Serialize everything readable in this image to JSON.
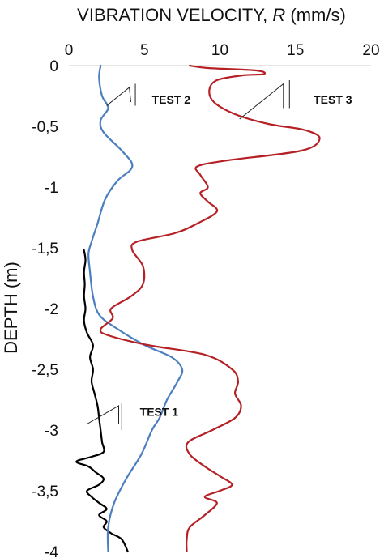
{
  "chart_data": {
    "type": "line",
    "title": "",
    "xlabel_prefix": "VIBRATION VELOCITY, ",
    "xlabel_var": "R",
    "xlabel_unit": " (mm/s)",
    "ylabel": "DEPTH (m)",
    "xlim": [
      0,
      20
    ],
    "ylim": [
      -4,
      0
    ],
    "x_ticks": [
      0,
      5,
      10,
      15,
      20
    ],
    "x_tick_labels": [
      "0",
      "5",
      "10",
      "15",
      "20"
    ],
    "y_ticks": [
      0,
      -0.5,
      -1,
      -1.5,
      -2,
      -2.5,
      -3,
      -3.5,
      -4
    ],
    "y_tick_labels": [
      "0",
      "-0,5",
      "-1",
      "-1,5",
      "-2",
      "-2,5",
      "-3",
      "-3,5",
      "-4"
    ],
    "grid": false,
    "legend": "none",
    "series": [
      {
        "name": "TEST 1",
        "color": "#000000",
        "points": [
          [
            1.0,
            -1.52
          ],
          [
            1.1,
            -1.6
          ],
          [
            1.0,
            -1.7
          ],
          [
            1.05,
            -1.8
          ],
          [
            1.0,
            -1.9
          ],
          [
            1.1,
            -2.0
          ],
          [
            1.0,
            -2.1
          ],
          [
            1.2,
            -2.2
          ],
          [
            1.6,
            -2.3
          ],
          [
            1.4,
            -2.4
          ],
          [
            1.6,
            -2.5
          ],
          [
            1.5,
            -2.6
          ],
          [
            1.7,
            -2.7
          ],
          [
            1.9,
            -2.8
          ],
          [
            2.0,
            -2.9
          ],
          [
            2.1,
            -3.0
          ],
          [
            2.2,
            -3.1
          ],
          [
            2.3,
            -3.18
          ],
          [
            1.5,
            -3.22
          ],
          [
            0.5,
            -3.26
          ],
          [
            1.3,
            -3.3
          ],
          [
            1.8,
            -3.35
          ],
          [
            2.3,
            -3.4
          ],
          [
            2.0,
            -3.45
          ],
          [
            1.2,
            -3.5
          ],
          [
            1.5,
            -3.55
          ],
          [
            2.0,
            -3.6
          ],
          [
            2.5,
            -3.65
          ],
          [
            2.0,
            -3.7
          ],
          [
            2.5,
            -3.75
          ],
          [
            2.3,
            -3.8
          ],
          [
            2.8,
            -3.85
          ],
          [
            3.5,
            -3.9
          ],
          [
            3.9,
            -4.0
          ]
        ]
      },
      {
        "name": "TEST 2",
        "color": "#4a7ebf",
        "points": [
          [
            2.1,
            0.0
          ],
          [
            2.0,
            -0.1
          ],
          [
            2.2,
            -0.25
          ],
          [
            2.6,
            -0.35
          ],
          [
            2.1,
            -0.45
          ],
          [
            2.3,
            -0.55
          ],
          [
            3.5,
            -0.7
          ],
          [
            4.2,
            -0.83
          ],
          [
            3.2,
            -0.95
          ],
          [
            2.4,
            -1.1
          ],
          [
            1.9,
            -1.3
          ],
          [
            1.5,
            -1.45
          ],
          [
            1.3,
            -1.55
          ],
          [
            1.4,
            -1.7
          ],
          [
            1.6,
            -1.9
          ],
          [
            2.0,
            -2.05
          ],
          [
            3.0,
            -2.15
          ],
          [
            5.0,
            -2.3
          ],
          [
            6.8,
            -2.4
          ],
          [
            7.5,
            -2.5
          ],
          [
            7.2,
            -2.6
          ],
          [
            6.5,
            -2.75
          ],
          [
            6.0,
            -2.9
          ],
          [
            5.5,
            -3.0
          ],
          [
            4.8,
            -3.2
          ],
          [
            3.8,
            -3.4
          ],
          [
            3.0,
            -3.6
          ],
          [
            2.6,
            -3.8
          ],
          [
            2.6,
            -4.0
          ]
        ]
      },
      {
        "name": "TEST 3",
        "color": "#b52025",
        "points": [
          [
            8.0,
            0.0
          ],
          [
            9.2,
            -0.02
          ],
          [
            12.4,
            -0.04
          ],
          [
            12.9,
            -0.07
          ],
          [
            11.5,
            -0.08
          ],
          [
            9.8,
            -0.12
          ],
          [
            9.3,
            -0.2
          ],
          [
            9.6,
            -0.3
          ],
          [
            11.0,
            -0.4
          ],
          [
            13.2,
            -0.48
          ],
          [
            15.6,
            -0.53
          ],
          [
            16.6,
            -0.6
          ],
          [
            15.4,
            -0.7
          ],
          [
            10.5,
            -0.78
          ],
          [
            8.5,
            -0.83
          ],
          [
            8.7,
            -0.9
          ],
          [
            9.2,
            -1.0
          ],
          [
            8.7,
            -1.05
          ],
          [
            9.2,
            -1.12
          ],
          [
            9.8,
            -1.2
          ],
          [
            8.5,
            -1.3
          ],
          [
            7.0,
            -1.38
          ],
          [
            4.5,
            -1.45
          ],
          [
            4.2,
            -1.52
          ],
          [
            4.9,
            -1.65
          ],
          [
            4.9,
            -1.8
          ],
          [
            4.1,
            -1.9
          ],
          [
            2.8,
            -2.0
          ],
          [
            2.9,
            -2.08
          ],
          [
            2.1,
            -2.17
          ],
          [
            2.6,
            -2.22
          ],
          [
            5.2,
            -2.3
          ],
          [
            9.0,
            -2.38
          ],
          [
            10.8,
            -2.5
          ],
          [
            11.2,
            -2.6
          ],
          [
            11.0,
            -2.7
          ],
          [
            11.4,
            -2.8
          ],
          [
            11.0,
            -2.9
          ],
          [
            9.5,
            -3.0
          ],
          [
            7.9,
            -3.1
          ],
          [
            8.0,
            -3.2
          ],
          [
            9.0,
            -3.3
          ],
          [
            10.0,
            -3.38
          ],
          [
            10.8,
            -3.45
          ],
          [
            10.0,
            -3.5
          ],
          [
            9.0,
            -3.55
          ],
          [
            9.8,
            -3.6
          ],
          [
            9.0,
            -3.7
          ],
          [
            8.0,
            -3.8
          ],
          [
            7.8,
            -3.9
          ],
          [
            7.8,
            -4.0
          ]
        ]
      }
    ],
    "annotations": [
      {
        "text": "TEST 1",
        "x": 4.7,
        "y": -2.85,
        "leader": [
          [
            1.2,
            -2.95
          ],
          [
            3.3,
            -2.8
          ],
          [
            3.3,
            -2.95
          ]
        ],
        "tick_bar": [
          [
            3.5,
            -2.78
          ],
          [
            3.5,
            -3.0
          ]
        ]
      },
      {
        "text": "TEST 2",
        "x": 5.5,
        "y": -0.28,
        "leader": [
          [
            2.5,
            -0.33
          ],
          [
            4.0,
            -0.18
          ],
          [
            4.1,
            -0.3
          ]
        ],
        "tick_bar": [
          [
            4.4,
            -0.15
          ],
          [
            4.4,
            -0.33
          ]
        ]
      },
      {
        "text": "TEST 3",
        "x": 16.2,
        "y": -0.28,
        "leader": [
          [
            11.3,
            -0.44
          ],
          [
            14.2,
            -0.15
          ],
          [
            14.2,
            -0.35
          ]
        ],
        "tick_bar": [
          [
            14.6,
            -0.12
          ],
          [
            14.6,
            -0.35
          ]
        ]
      }
    ]
  }
}
